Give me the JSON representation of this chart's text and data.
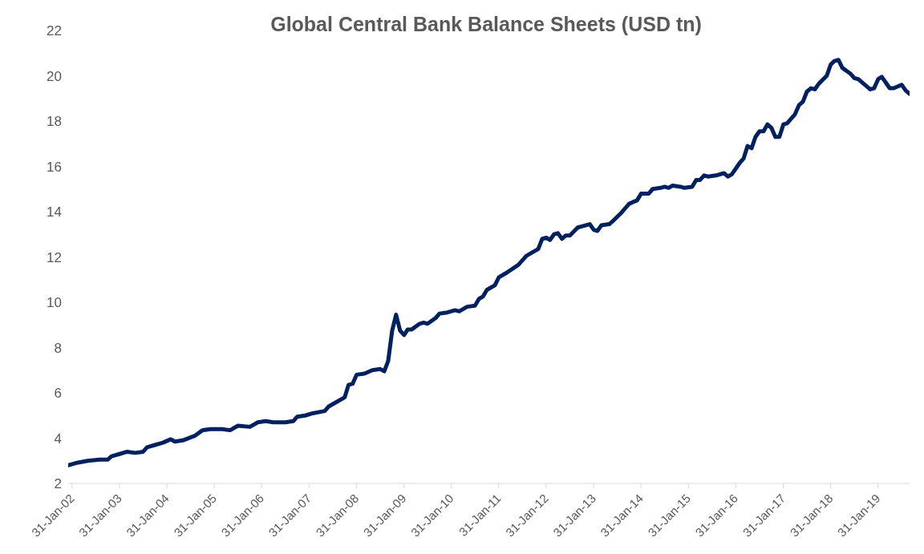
{
  "chart_data": {
    "type": "line",
    "title": "Global Central Bank Balance Sheets (USD tn)",
    "x": [
      "2002-01",
      "2002-03",
      "2002-06",
      "2002-09",
      "2002-11",
      "2002-12",
      "2003-02",
      "2003-04",
      "2003-06",
      "2003-08",
      "2003-09",
      "2003-11",
      "2004-01",
      "2004-03",
      "2004-04",
      "2004-06",
      "2004-09",
      "2004-11",
      "2005-01",
      "2005-04",
      "2005-06",
      "2005-08",
      "2005-11",
      "2006-01",
      "2006-03",
      "2006-05",
      "2006-08",
      "2006-10",
      "2006-11",
      "2007-01",
      "2007-03",
      "2007-06",
      "2007-07",
      "2007-09",
      "2007-11",
      "2007-12",
      "2008-01",
      "2008-02",
      "2008-04",
      "2008-06",
      "2008-08",
      "2008-09",
      "2008-10",
      "2008-11",
      "2008-12",
      "2009-01",
      "2009-02",
      "2009-03",
      "2009-04",
      "2009-06",
      "2009-07",
      "2009-08",
      "2009-10",
      "2009-11",
      "2010-01",
      "2010-03",
      "2010-04",
      "2010-06",
      "2010-08",
      "2010-09",
      "2010-10",
      "2010-11",
      "2011-01",
      "2011-02",
      "2011-04",
      "2011-07",
      "2011-09",
      "2011-11",
      "2011-12",
      "2012-01",
      "2012-02",
      "2012-03",
      "2012-04",
      "2012-05",
      "2012-06",
      "2012-07",
      "2012-08",
      "2012-10",
      "2012-11",
      "2013-01",
      "2013-02",
      "2013-03",
      "2013-04",
      "2013-06",
      "2013-07",
      "2013-09",
      "2013-11",
      "2014-01",
      "2014-02",
      "2014-03",
      "2014-04",
      "2014-05",
      "2014-07",
      "2014-08",
      "2014-09",
      "2014-10",
      "2014-12",
      "2015-01",
      "2015-03",
      "2015-04",
      "2015-05",
      "2015-06",
      "2015-07",
      "2015-09",
      "2015-11",
      "2015-12",
      "2016-01",
      "2016-03",
      "2016-04",
      "2016-05",
      "2016-06",
      "2016-07",
      "2016-08",
      "2016-09",
      "2016-10",
      "2016-11",
      "2016-12",
      "2017-01",
      "2017-02",
      "2017-03",
      "2017-05",
      "2017-06",
      "2017-07",
      "2017-08",
      "2017-09",
      "2017-10",
      "2017-11",
      "2018-01",
      "2018-02",
      "2018-03",
      "2018-04",
      "2018-05",
      "2018-07",
      "2018-08",
      "2018-09",
      "2018-10",
      "2018-12",
      "2019-01",
      "2019-02",
      "2019-03",
      "2019-04",
      "2019-05",
      "2019-06",
      "2019-08",
      "2019-09",
      "2019-10"
    ],
    "series": [
      {
        "color": "#002060",
        "values": [
          2.8,
          2.9,
          3.0,
          3.05,
          3.05,
          3.2,
          3.3,
          3.4,
          3.35,
          3.4,
          3.6,
          3.7,
          3.8,
          3.95,
          3.85,
          3.9,
          4.1,
          4.35,
          4.4,
          4.4,
          4.35,
          4.55,
          4.5,
          4.7,
          4.75,
          4.7,
          4.7,
          4.75,
          4.95,
          5.0,
          5.1,
          5.2,
          5.4,
          5.6,
          5.8,
          6.35,
          6.4,
          6.8,
          6.85,
          7.0,
          7.05,
          6.95,
          7.4,
          8.75,
          9.45,
          8.75,
          8.55,
          8.8,
          8.8,
          9.05,
          9.1,
          9.05,
          9.3,
          9.5,
          9.55,
          9.65,
          9.6,
          9.8,
          9.85,
          10.15,
          10.25,
          10.55,
          10.75,
          11.1,
          11.3,
          11.65,
          12.05,
          12.25,
          12.35,
          12.8,
          12.85,
          12.75,
          13.0,
          13.05,
          12.8,
          12.95,
          12.95,
          13.3,
          13.35,
          13.45,
          13.2,
          13.15,
          13.4,
          13.45,
          13.6,
          13.95,
          14.35,
          14.5,
          14.8,
          14.8,
          14.8,
          15.0,
          15.05,
          15.1,
          15.05,
          15.15,
          15.1,
          15.05,
          15.1,
          15.4,
          15.4,
          15.6,
          15.55,
          15.6,
          15.7,
          15.55,
          15.65,
          16.15,
          16.35,
          16.9,
          16.8,
          17.3,
          17.55,
          17.55,
          17.85,
          17.7,
          17.3,
          17.3,
          17.85,
          17.9,
          18.3,
          18.7,
          18.85,
          19.3,
          19.45,
          19.4,
          19.65,
          20.0,
          20.5,
          20.65,
          20.7,
          20.35,
          20.1,
          19.9,
          19.85,
          19.7,
          19.4,
          19.45,
          19.85,
          19.95,
          19.7,
          19.45,
          19.45,
          19.6,
          19.35,
          19.2
        ]
      }
    ],
    "xlim": [
      "2002-01",
      "2019-10"
    ],
    "xticks": [
      {
        "value": "2002-01-31",
        "label": "31-Jan-02"
      },
      {
        "value": "2003-01-31",
        "label": "31-Jan-03"
      },
      {
        "value": "2004-01-31",
        "label": "31-Jan-04"
      },
      {
        "value": "2005-01-31",
        "label": "31-Jan-05"
      },
      {
        "value": "2006-01-31",
        "label": "31-Jan-06"
      },
      {
        "value": "2007-01-31",
        "label": "31-Jan-07"
      },
      {
        "value": "2008-01-31",
        "label": "31-Jan-08"
      },
      {
        "value": "2009-01-31",
        "label": "31-Jan-09"
      },
      {
        "value": "2010-01-31",
        "label": "31-Jan-10"
      },
      {
        "value": "2011-01-31",
        "label": "31-Jan-11"
      },
      {
        "value": "2012-01-31",
        "label": "31-Jan-12"
      },
      {
        "value": "2013-01-31",
        "label": "31-Jan-13"
      },
      {
        "value": "2014-01-31",
        "label": "31-Jan-14"
      },
      {
        "value": "2015-01-31",
        "label": "31-Jan-15"
      },
      {
        "value": "2016-01-31",
        "label": "31-Jan-16"
      },
      {
        "value": "2017-01-31",
        "label": "31-Jan-17"
      },
      {
        "value": "2018-01-31",
        "label": "31-Jan-18"
      },
      {
        "value": "2019-01-31",
        "label": "31-Jan-19"
      }
    ],
    "ylim": [
      2,
      22
    ],
    "yticks": [
      2,
      4,
      6,
      8,
      10,
      12,
      14,
      16,
      18,
      20,
      22
    ],
    "grid": false,
    "legend": false,
    "marker": "none",
    "line_style": "solid"
  }
}
